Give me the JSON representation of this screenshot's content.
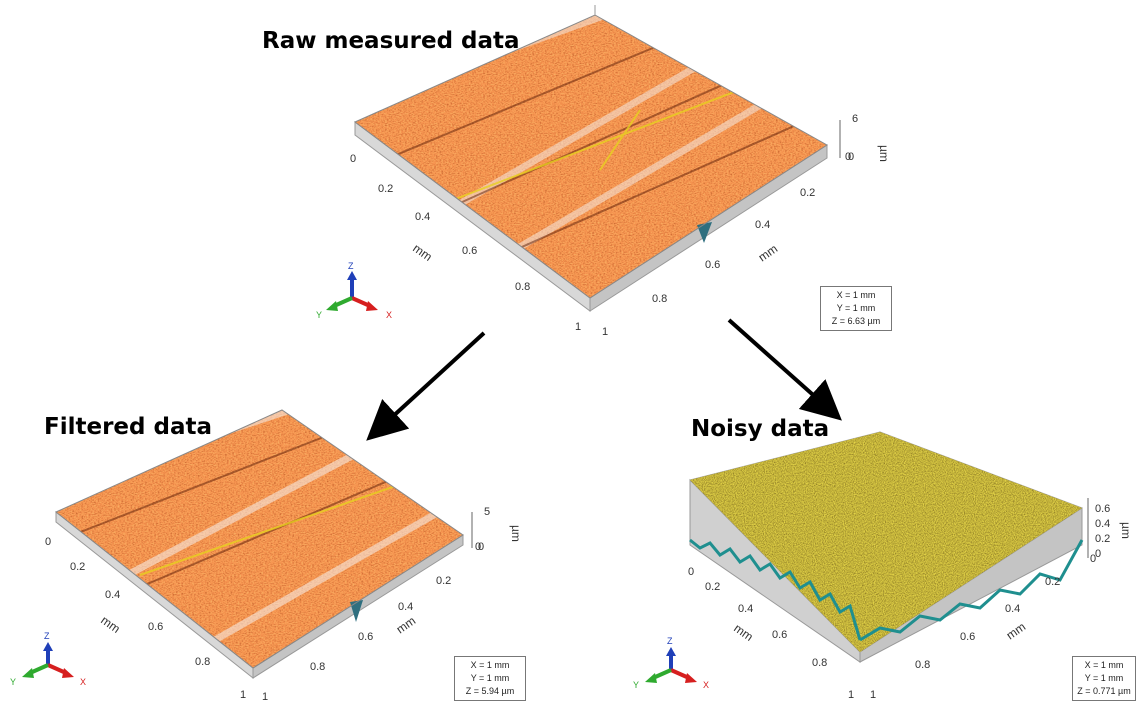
{
  "panels": [
    {
      "title": "Raw measured data",
      "info": {
        "x": "X = 1 mm",
        "y": "Y = 1 mm",
        "z": "Z = 6.63 µm"
      },
      "z_ticks": [
        "6",
        "0"
      ],
      "z_unit": "µm",
      "axis_unit": "mm",
      "left_ticks": [
        "0",
        "0.2",
        "0.4",
        "0.6",
        "0.8",
        "1"
      ],
      "right_ticks": [
        "0",
        "0.2",
        "0.4",
        "0.6",
        "0.8",
        "1"
      ],
      "texture": "orange-scratched"
    },
    {
      "title": "Filtered data",
      "info": {
        "x": "X = 1 mm",
        "y": "Y = 1 mm",
        "z": "Z = 5.94 µm"
      },
      "z_ticks": [
        "5",
        "0"
      ],
      "z_unit": "µm",
      "axis_unit": "mm",
      "left_ticks": [
        "0",
        "0.2",
        "0.4",
        "0.6",
        "0.8",
        "1"
      ],
      "right_ticks": [
        "0",
        "0.2",
        "0.4",
        "0.6",
        "0.8",
        "1"
      ],
      "texture": "orange-scratched"
    },
    {
      "title": "Noisy data",
      "info": {
        "x": "X = 1 mm",
        "y": "Y = 1 mm",
        "z": "Z = 0.771 µm"
      },
      "z_ticks": [
        "0.6",
        "0.4",
        "0.2",
        "0"
      ],
      "z_unit": "µm",
      "axis_unit": "mm",
      "left_ticks": [
        "0",
        "0.2",
        "0.4",
        "0.6",
        "0.8",
        "1"
      ],
      "right_ticks": [
        "0",
        "0.2",
        "0.4",
        "0.6",
        "0.8",
        "1"
      ],
      "texture": "olive-noise"
    }
  ],
  "triad": {
    "x": "X",
    "y": "Y",
    "z": "Z"
  },
  "colors": {
    "surface_orange": "#c8501c",
    "surface_olive": "#7a6a1a",
    "axis_x": "#d61f1f",
    "axis_y": "#2faa2f",
    "axis_z": "#1f3fb8"
  }
}
